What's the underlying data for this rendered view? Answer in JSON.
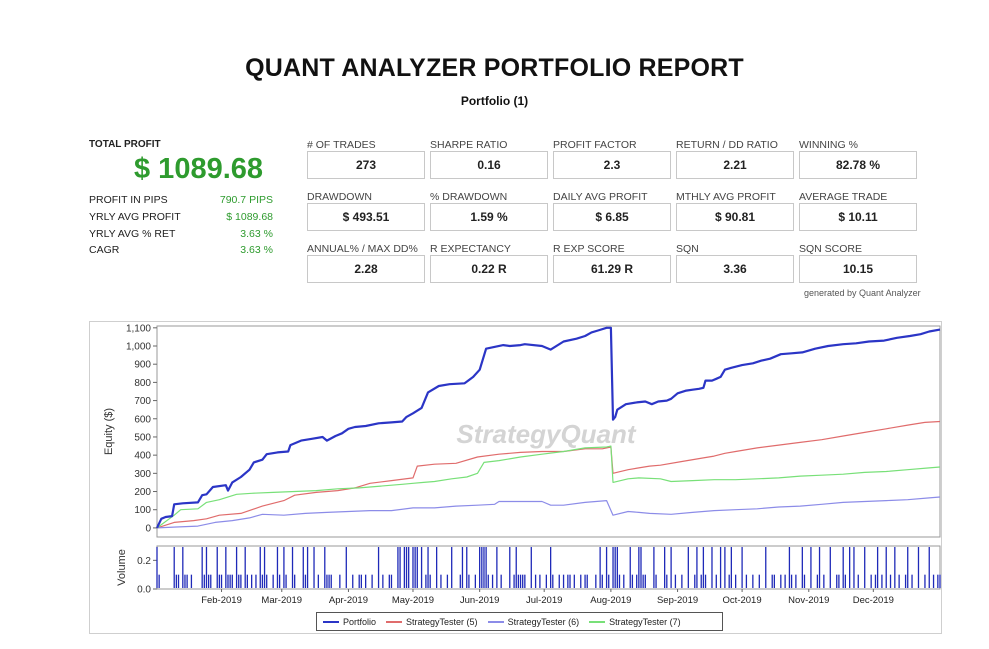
{
  "header": {
    "title": "QUANT ANALYZER PORTFOLIO REPORT",
    "subtitle": "Portfolio (1)"
  },
  "summary": {
    "total_profit_label": "TOTAL PROFIT",
    "total_profit_value": "$ 1089.68",
    "rows": [
      {
        "label": "PROFIT IN PIPS",
        "value": "790.7 PIPS"
      },
      {
        "label": "YRLY AVG PROFIT",
        "value": "$ 1089.68"
      },
      {
        "label": "YRLY AVG % RET",
        "value": "3.63 %"
      },
      {
        "label": "CAGR",
        "value": "3.63 %"
      }
    ]
  },
  "metrics": [
    {
      "label": "# OF TRADES",
      "value": "273"
    },
    {
      "label": "SHARPE RATIO",
      "value": "0.16"
    },
    {
      "label": "PROFIT FACTOR",
      "value": "2.3"
    },
    {
      "label": "RETURN / DD RATIO",
      "value": "2.21"
    },
    {
      "label": "WINNING %",
      "value": "82.78 %"
    },
    {
      "label": "DRAWDOWN",
      "value": "$ 493.51"
    },
    {
      "label": "% DRAWDOWN",
      "value": "1.59 %"
    },
    {
      "label": "DAILY AVG PROFIT",
      "value": "$ 6.85"
    },
    {
      "label": "MTHLY AVG PROFIT",
      "value": "$ 90.81"
    },
    {
      "label": "AVERAGE TRADE",
      "value": "$ 10.11"
    },
    {
      "label": "ANNUAL% / MAX DD%",
      "value": "2.28"
    },
    {
      "label": "R EXPECTANCY",
      "value": "0.22 R"
    },
    {
      "label": "R EXP SCORE",
      "value": "61.29 R"
    },
    {
      "label": "SQN",
      "value": "3.36"
    },
    {
      "label": "SQN SCORE",
      "value": "10.15"
    }
  ],
  "generated_by": "generated by Quant Analyzer",
  "chart_data": {
    "type": "line",
    "watermark": "StrategyQuant",
    "ylabel": "Equity ($)",
    "ylim": [
      -50,
      1110
    ],
    "yticks": [
      0,
      100,
      200,
      300,
      400,
      500,
      600,
      700,
      800,
      900,
      1000,
      1100
    ],
    "ytick_labels": [
      "0",
      "100",
      "200",
      "300",
      "400",
      "500",
      "600",
      "700",
      "800",
      "900",
      "1,000",
      "1,100"
    ],
    "x_label_months": [
      "Feb-2019",
      "Mar-2019",
      "Apr-2019",
      "May-2019",
      "Jun-2019",
      "Jul-2019",
      "Aug-2019",
      "Sep-2019",
      "Oct-2019",
      "Nov-2019",
      "Dec-2019"
    ],
    "x_label_day": [
      31,
      59,
      90,
      120,
      151,
      181,
      212,
      243,
      273,
      304,
      334
    ],
    "x_domain": [
      1,
      365
    ],
    "series": [
      {
        "name": "Portfolio",
        "color": "#2b35c6",
        "points": [
          [
            1,
            0
          ],
          [
            3,
            50
          ],
          [
            5,
            60
          ],
          [
            8,
            65
          ],
          [
            9,
            130
          ],
          [
            13,
            135
          ],
          [
            20,
            140
          ],
          [
            22,
            180
          ],
          [
            24,
            185
          ],
          [
            27,
            225
          ],
          [
            33,
            235
          ],
          [
            34,
            205
          ],
          [
            36,
            250
          ],
          [
            40,
            280
          ],
          [
            44,
            320
          ],
          [
            46,
            360
          ],
          [
            50,
            375
          ],
          [
            52,
            405
          ],
          [
            57,
            415
          ],
          [
            62,
            420
          ],
          [
            63,
            455
          ],
          [
            68,
            480
          ],
          [
            73,
            490
          ],
          [
            78,
            500
          ],
          [
            80,
            480
          ],
          [
            84,
            505
          ],
          [
            87,
            520
          ],
          [
            90,
            545
          ],
          [
            93,
            555
          ],
          [
            98,
            560
          ],
          [
            104,
            575
          ],
          [
            110,
            580
          ],
          [
            115,
            585
          ],
          [
            117,
            610
          ],
          [
            120,
            630
          ],
          [
            124,
            660
          ],
          [
            127,
            745
          ],
          [
            132,
            780
          ],
          [
            137,
            790
          ],
          [
            144,
            795
          ],
          [
            148,
            830
          ],
          [
            151,
            870
          ],
          [
            154,
            985
          ],
          [
            162,
            1005
          ],
          [
            165,
            1000
          ],
          [
            170,
            1005
          ],
          [
            172,
            1010
          ],
          [
            180,
            1000
          ],
          [
            184,
            980
          ],
          [
            190,
            1025
          ],
          [
            196,
            1040
          ],
          [
            200,
            1055
          ],
          [
            203,
            1075
          ],
          [
            206,
            1085
          ],
          [
            210,
            1100
          ],
          [
            212,
            1100
          ],
          [
            213,
            595
          ],
          [
            214,
            610
          ],
          [
            215,
            650
          ],
          [
            219,
            680
          ],
          [
            224,
            690
          ],
          [
            228,
            695
          ],
          [
            231,
            680
          ],
          [
            234,
            695
          ],
          [
            238,
            700
          ],
          [
            240,
            710
          ],
          [
            243,
            740
          ],
          [
            247,
            755
          ],
          [
            250,
            760
          ],
          [
            253,
            765
          ],
          [
            255,
            770
          ],
          [
            256,
            810
          ],
          [
            259,
            810
          ],
          [
            261,
            820
          ],
          [
            263,
            830
          ],
          [
            265,
            870
          ],
          [
            268,
            880
          ],
          [
            273,
            895
          ],
          [
            278,
            905
          ],
          [
            282,
            920
          ],
          [
            286,
            930
          ],
          [
            291,
            955
          ],
          [
            296,
            960
          ],
          [
            301,
            965
          ],
          [
            307,
            985
          ],
          [
            313,
            1000
          ],
          [
            320,
            1010
          ],
          [
            326,
            1015
          ],
          [
            332,
            1025
          ],
          [
            339,
            1030
          ],
          [
            345,
            1045
          ],
          [
            351,
            1055
          ],
          [
            356,
            1065
          ],
          [
            360,
            1080
          ],
          [
            365,
            1090
          ]
        ]
      },
      {
        "name": "StrategyTester (5)",
        "color": "#e06c6c",
        "points": [
          [
            1,
            0
          ],
          [
            9,
            30
          ],
          [
            18,
            40
          ],
          [
            24,
            50
          ],
          [
            30,
            70
          ],
          [
            40,
            80
          ],
          [
            50,
            120
          ],
          [
            60,
            150
          ],
          [
            65,
            180
          ],
          [
            75,
            195
          ],
          [
            85,
            205
          ],
          [
            93,
            220
          ],
          [
            100,
            245
          ],
          [
            110,
            260
          ],
          [
            120,
            275
          ],
          [
            122,
            340
          ],
          [
            130,
            350
          ],
          [
            140,
            355
          ],
          [
            150,
            390
          ],
          [
            160,
            405
          ],
          [
            170,
            415
          ],
          [
            180,
            420
          ],
          [
            190,
            420
          ],
          [
            200,
            435
          ],
          [
            208,
            435
          ],
          [
            212,
            445
          ],
          [
            213,
            300
          ],
          [
            220,
            320
          ],
          [
            225,
            330
          ],
          [
            230,
            340
          ],
          [
            235,
            345
          ],
          [
            245,
            365
          ],
          [
            255,
            385
          ],
          [
            260,
            395
          ],
          [
            265,
            410
          ],
          [
            270,
            420
          ],
          [
            280,
            440
          ],
          [
            290,
            455
          ],
          [
            300,
            470
          ],
          [
            310,
            485
          ],
          [
            320,
            505
          ],
          [
            330,
            525
          ],
          [
            340,
            545
          ],
          [
            350,
            565
          ],
          [
            358,
            580
          ],
          [
            365,
            585
          ]
        ]
      },
      {
        "name": "StrategyTester (6)",
        "color": "#8c8ce8",
        "points": [
          [
            1,
            0
          ],
          [
            10,
            5
          ],
          [
            20,
            10
          ],
          [
            28,
            30
          ],
          [
            36,
            40
          ],
          [
            44,
            55
          ],
          [
            50,
            75
          ],
          [
            60,
            70
          ],
          [
            70,
            80
          ],
          [
            80,
            85
          ],
          [
            90,
            90
          ],
          [
            100,
            95
          ],
          [
            110,
            95
          ],
          [
            120,
            110
          ],
          [
            130,
            110
          ],
          [
            140,
            120
          ],
          [
            150,
            125
          ],
          [
            158,
            130
          ],
          [
            160,
            145
          ],
          [
            170,
            145
          ],
          [
            180,
            145
          ],
          [
            184,
            125
          ],
          [
            190,
            125
          ],
          [
            200,
            140
          ],
          [
            210,
            150
          ],
          [
            213,
            70
          ],
          [
            220,
            90
          ],
          [
            225,
            85
          ],
          [
            230,
            80
          ],
          [
            240,
            75
          ],
          [
            250,
            85
          ],
          [
            260,
            95
          ],
          [
            270,
            100
          ],
          [
            280,
            105
          ],
          [
            290,
            115
          ],
          [
            300,
            120
          ],
          [
            310,
            130
          ],
          [
            320,
            140
          ],
          [
            330,
            145
          ],
          [
            340,
            150
          ],
          [
            350,
            155
          ],
          [
            360,
            165
          ],
          [
            365,
            170
          ]
        ]
      },
      {
        "name": "StrategyTester (7)",
        "color": "#78e078",
        "points": [
          [
            1,
            0
          ],
          [
            9,
            70
          ],
          [
            12,
            100
          ],
          [
            20,
            105
          ],
          [
            24,
            140
          ],
          [
            30,
            155
          ],
          [
            38,
            185
          ],
          [
            45,
            190
          ],
          [
            55,
            195
          ],
          [
            65,
            200
          ],
          [
            75,
            205
          ],
          [
            85,
            215
          ],
          [
            95,
            220
          ],
          [
            105,
            230
          ],
          [
            115,
            240
          ],
          [
            120,
            245
          ],
          [
            125,
            250
          ],
          [
            130,
            255
          ],
          [
            138,
            270
          ],
          [
            145,
            280
          ],
          [
            150,
            300
          ],
          [
            153,
            360
          ],
          [
            160,
            370
          ],
          [
            170,
            390
          ],
          [
            180,
            405
          ],
          [
            190,
            420
          ],
          [
            200,
            440
          ],
          [
            210,
            445
          ],
          [
            212,
            450
          ],
          [
            213,
            250
          ],
          [
            220,
            270
          ],
          [
            225,
            275
          ],
          [
            235,
            270
          ],
          [
            240,
            255
          ],
          [
            250,
            260
          ],
          [
            260,
            265
          ],
          [
            270,
            265
          ],
          [
            280,
            270
          ],
          [
            290,
            275
          ],
          [
            300,
            285
          ],
          [
            310,
            290
          ],
          [
            320,
            295
          ],
          [
            330,
            305
          ],
          [
            340,
            310
          ],
          [
            350,
            320
          ],
          [
            360,
            330
          ],
          [
            365,
            335
          ]
        ]
      }
    ],
    "volume": {
      "ylabel": "Volume",
      "ytick_labels": [
        "0.0",
        "0.2"
      ],
      "ylim": [
        0,
        0.3
      ],
      "trade_days": [
        1,
        2,
        9,
        10,
        11,
        13,
        14,
        15,
        17,
        22,
        23,
        24,
        25,
        26,
        29,
        30,
        31,
        33,
        34,
        35,
        36,
        38,
        39,
        40,
        42,
        43,
        45,
        47,
        49,
        50,
        51,
        52,
        55,
        57,
        58,
        60,
        61,
        64,
        65,
        69,
        70,
        71,
        74,
        76,
        79,
        80,
        81,
        82,
        86,
        89,
        92,
        95,
        96,
        98,
        101,
        104,
        106,
        109,
        110,
        113,
        114,
        116,
        117,
        118,
        120,
        121,
        122,
        124,
        126,
        127,
        128,
        131,
        133,
        136,
        138,
        142,
        143,
        145,
        146,
        149,
        151,
        152,
        153,
        154,
        155,
        157,
        159,
        161,
        165,
        167,
        168,
        169,
        170,
        171,
        172,
        175,
        177,
        179,
        182,
        184,
        185,
        188,
        190,
        192,
        193,
        195,
        198,
        200,
        201,
        205,
        207,
        208,
        210,
        211,
        213,
        214,
        215,
        216,
        218,
        221,
        222,
        224,
        225,
        226,
        227,
        228,
        232,
        233,
        237,
        238,
        240,
        242,
        245,
        248,
        251,
        252,
        254,
        255,
        256,
        259,
        261,
        263,
        265,
        267,
        268,
        270,
        273,
        275,
        278,
        281,
        284,
        287,
        288,
        291,
        293,
        295,
        296,
        298,
        301,
        302,
        305,
        308,
        309,
        311,
        314,
        317,
        318,
        320,
        321,
        323,
        325,
        327,
        330,
        333,
        335,
        336,
        338,
        340,
        342,
        344,
        346,
        349,
        350,
        352,
        355,
        358,
        360,
        362,
        364,
        365
      ],
      "tall_days": [
        1,
        9,
        13,
        22,
        24,
        29,
        33,
        38,
        42,
        49,
        51,
        57,
        60,
        64,
        69,
        71,
        74,
        79,
        89,
        104,
        113,
        114,
        116,
        117,
        118,
        120,
        121,
        122,
        124,
        127,
        131,
        138,
        143,
        145,
        151,
        152,
        153,
        154,
        159,
        165,
        168,
        175,
        184,
        207,
        210,
        213,
        214,
        215,
        221,
        225,
        226,
        232,
        237,
        240,
        248,
        252,
        255,
        259,
        263,
        265,
        268,
        273,
        284,
        295,
        301,
        305,
        309,
        314,
        320,
        323,
        325,
        330,
        336,
        340,
        344,
        350,
        355,
        360
      ]
    },
    "legend_placement": "bottom-center"
  }
}
